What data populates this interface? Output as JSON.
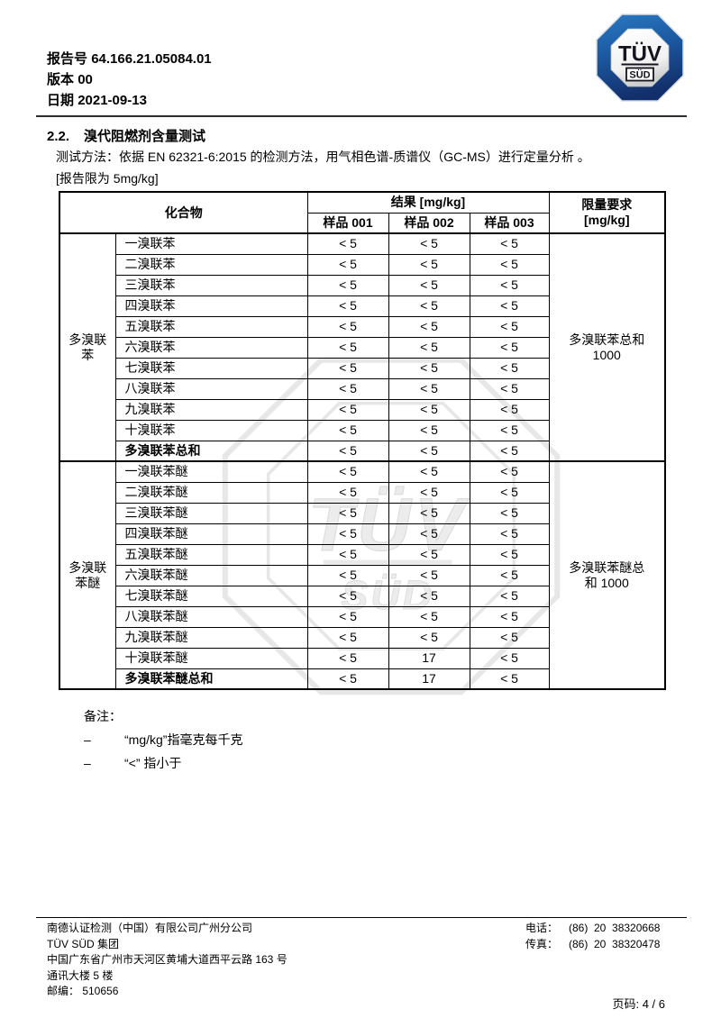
{
  "header": {
    "report_label": "报告号",
    "report_number": "64.166.21.05084.01",
    "version_label": "版本",
    "version": "00",
    "date_label": "日期",
    "date": "2021-09-13"
  },
  "logo": {
    "line1": "TÜV",
    "line2": "SÜD"
  },
  "watermark": {
    "line1": "TÜV",
    "line2": "SÜD"
  },
  "colors": {
    "logo_blue_top": "#2b7ac3",
    "logo_navy_bottom": "#122f6b",
    "watermark_gray": "#e7e7e7"
  },
  "section": {
    "number": "2.2.",
    "title": "溴代阻燃剂含量测试",
    "method": "测试方法：依据 EN 62321-6:2015 的检测方法，用气相色谱-质谱仪（GC-MS）进行定量分析 。",
    "report_limit": "[报告限为 5mg/kg]"
  },
  "table": {
    "header": {
      "compound": "化合物",
      "result": "结果 [mg/kg]",
      "samples": [
        "样品 001",
        "样品 002",
        "样品 003"
      ],
      "limit_line1": "限量要求",
      "limit_line2": "[mg/kg]"
    },
    "groups": [
      {
        "label": "多溴联苯",
        "limit_lines": [
          "多溴联苯总和",
          "1000"
        ],
        "rows": [
          {
            "compound": "一溴联苯",
            "values": [
              "< 5",
              "< 5",
              "< 5"
            ]
          },
          {
            "compound": "二溴联苯",
            "values": [
              "< 5",
              "< 5",
              "< 5"
            ]
          },
          {
            "compound": "三溴联苯",
            "values": [
              "< 5",
              "< 5",
              "< 5"
            ]
          },
          {
            "compound": "四溴联苯",
            "values": [
              "< 5",
              "< 5",
              "< 5"
            ]
          },
          {
            "compound": "五溴联苯",
            "values": [
              "< 5",
              "< 5",
              "< 5"
            ]
          },
          {
            "compound": "六溴联苯",
            "values": [
              "< 5",
              "< 5",
              "< 5"
            ]
          },
          {
            "compound": "七溴联苯",
            "values": [
              "< 5",
              "< 5",
              "< 5"
            ]
          },
          {
            "compound": "八溴联苯",
            "values": [
              "< 5",
              "< 5",
              "< 5"
            ]
          },
          {
            "compound": "九溴联苯",
            "values": [
              "< 5",
              "< 5",
              "< 5"
            ]
          },
          {
            "compound": "十溴联苯",
            "values": [
              "< 5",
              "< 5",
              "< 5"
            ]
          },
          {
            "compound": "多溴联苯总和",
            "values": [
              "< 5",
              "< 5",
              "< 5"
            ],
            "bold": true
          }
        ]
      },
      {
        "label": "多溴联苯醚",
        "limit_lines": [
          "多溴联苯醚总",
          "和 1000"
        ],
        "rows": [
          {
            "compound": "一溴联苯醚",
            "values": [
              "< 5",
              "< 5",
              "< 5"
            ]
          },
          {
            "compound": "二溴联苯醚",
            "values": [
              "< 5",
              "< 5",
              "< 5"
            ]
          },
          {
            "compound": "三溴联苯醚",
            "values": [
              "< 5",
              "< 5",
              "< 5"
            ]
          },
          {
            "compound": "四溴联苯醚",
            "values": [
              "< 5",
              "< 5",
              "< 5"
            ]
          },
          {
            "compound": "五溴联苯醚",
            "values": [
              "< 5",
              "< 5",
              "< 5"
            ]
          },
          {
            "compound": "六溴联苯醚",
            "values": [
              "< 5",
              "< 5",
              "< 5"
            ]
          },
          {
            "compound": "七溴联苯醚",
            "values": [
              "< 5",
              "< 5",
              "< 5"
            ]
          },
          {
            "compound": "八溴联苯醚",
            "values": [
              "< 5",
              "< 5",
              "< 5"
            ]
          },
          {
            "compound": "九溴联苯醚",
            "values": [
              "< 5",
              "< 5",
              "< 5"
            ]
          },
          {
            "compound": "十溴联苯醚",
            "values": [
              "< 5",
              "17",
              "< 5"
            ]
          },
          {
            "compound": "多溴联苯醚总和",
            "values": [
              "< 5",
              "17",
              "< 5"
            ],
            "bold": true
          }
        ]
      }
    ]
  },
  "notes": {
    "title": "备注：",
    "items": [
      {
        "bullet": "–",
        "text": "“mg/kg”指毫克每千克"
      },
      {
        "bullet": "–",
        "text": "“<” 指小于"
      }
    ]
  },
  "footer": {
    "company_lines": [
      "南德认证检测（中国）有限公司广州分公司",
      "TÜV SÜD 集团",
      "中国广东省广州市天河区黄埔大道西平云路 163 号",
      "通讯大楼 5 楼",
      "邮编： 510656"
    ],
    "phone_label": "电话：",
    "phone": "(86)  20  38320668",
    "fax_label": "传真：",
    "fax": "(86)  20  38320478",
    "page_label": "页码:",
    "page": "4 / 6"
  }
}
